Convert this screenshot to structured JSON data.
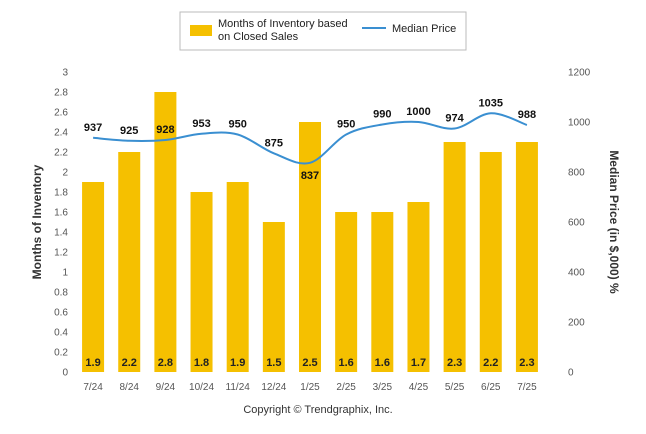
{
  "chart_data": {
    "type": "bar",
    "categories": [
      "7/24",
      "8/24",
      "9/24",
      "10/24",
      "11/24",
      "12/24",
      "1/25",
      "2/25",
      "3/25",
      "4/25",
      "5/25",
      "6/25",
      "7/25"
    ],
    "series": [
      {
        "name": "Months of Inventory based on Closed Sales",
        "type": "bar",
        "axis": "left",
        "color": "#f5c000",
        "values": [
          1.9,
          2.2,
          2.8,
          1.8,
          1.9,
          1.5,
          2.5,
          1.6,
          1.6,
          1.7,
          2.3,
          2.2,
          2.3
        ]
      },
      {
        "name": "Median Price",
        "type": "line",
        "axis": "right",
        "color": "#3a8fd1",
        "values": [
          937,
          925,
          928,
          953,
          950,
          875,
          837,
          950,
          990,
          1000,
          974,
          1035,
          988
        ]
      }
    ],
    "ylabel": "Months of Inventory",
    "y2label": "Median Price (in $,000) %",
    "ylim": [
      0,
      3
    ],
    "y2lim": [
      0,
      1200
    ],
    "yticks": [
      "0",
      "0.2",
      "0.4",
      "0.6",
      "0.8",
      "1",
      "1.2",
      "1.4",
      "1.6",
      "1.8",
      "2",
      "2.2",
      "2.4",
      "2.6",
      "2.8",
      "3"
    ],
    "y2ticks": [
      "0",
      "200",
      "400",
      "600",
      "800",
      "1000",
      "1200"
    ],
    "grid": false,
    "legend": {
      "position": "top-center",
      "bar_label_line1": "Months of Inventory based",
      "bar_label_line2": "on Closed Sales",
      "line_label": "Median Price"
    }
  },
  "footer": {
    "copyright": "Copyright © Trendgraphix, Inc."
  }
}
